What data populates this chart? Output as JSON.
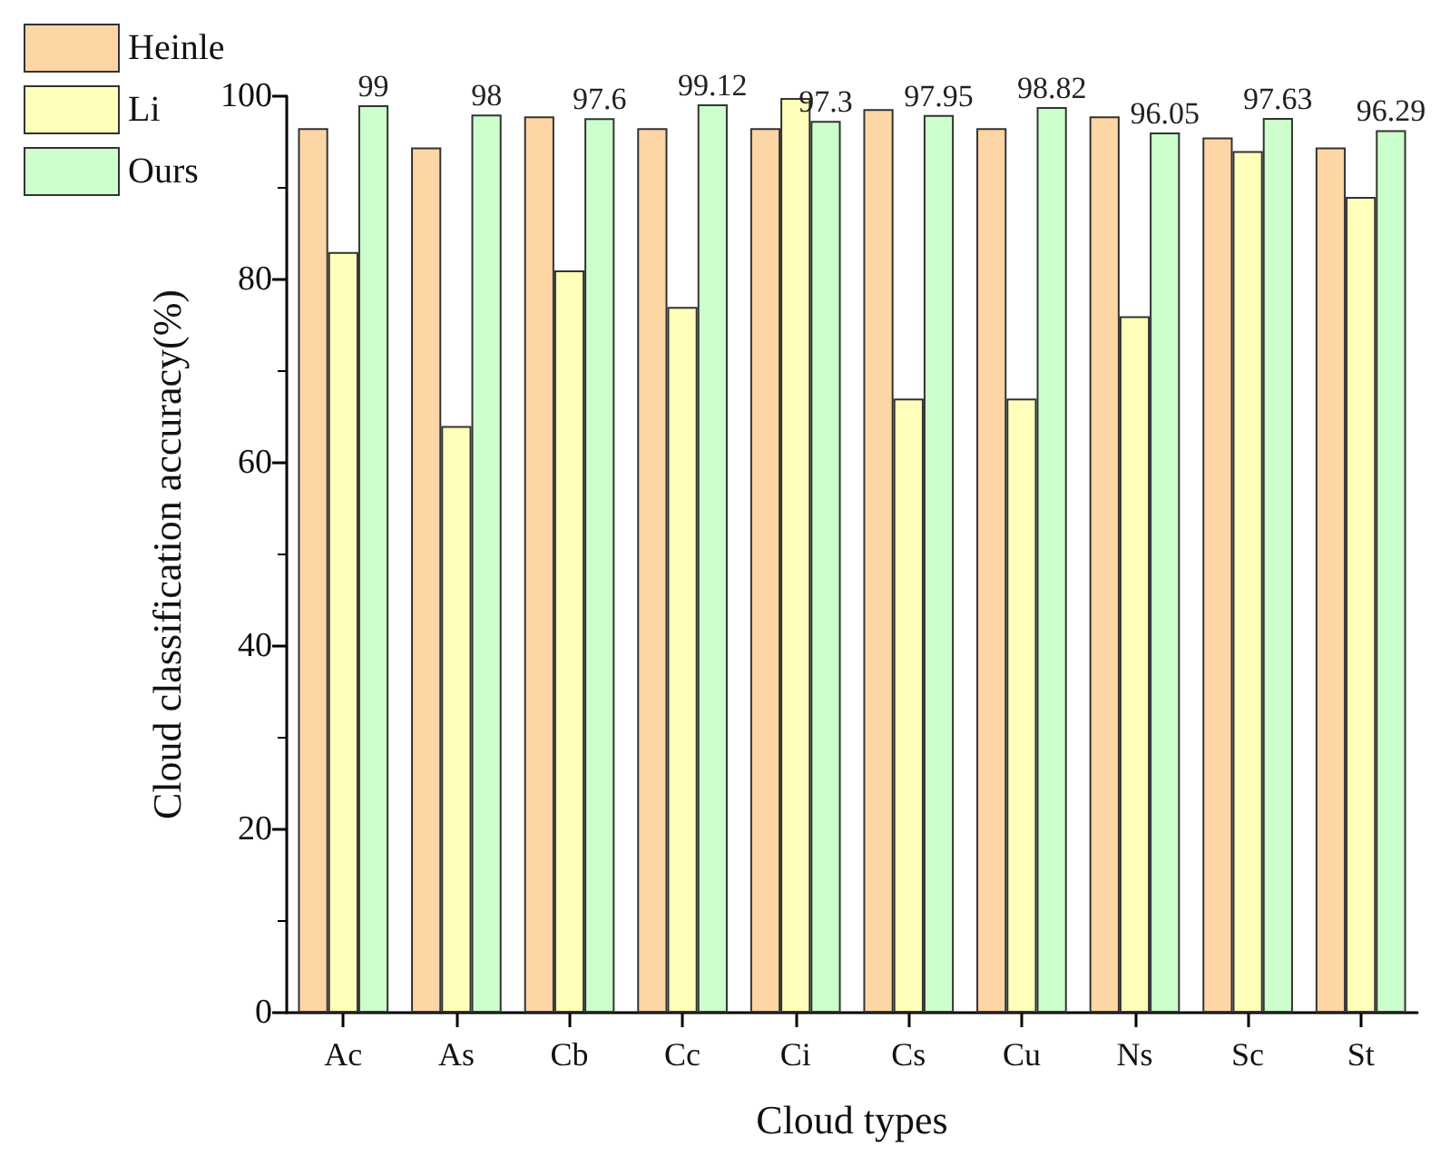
{
  "chart_data": {
    "type": "bar",
    "xlabel": "Cloud types",
    "ylabel": "Cloud classification accuracy(%)",
    "categories": [
      "Ac",
      "As",
      "Cb",
      "Cc",
      "Ci",
      "Cs",
      "Cu",
      "Ns",
      "Sc",
      "St"
    ],
    "series": [
      {
        "name": "Heinle",
        "color": "#fed5a5",
        "values": [
          96.5,
          94.4,
          97.8,
          96.5,
          96.5,
          98.6,
          96.5,
          97.8,
          95.5,
          94.4
        ]
      },
      {
        "name": "Li",
        "color": "#ffffbb",
        "values": [
          83,
          64,
          81,
          77,
          99.8,
          67,
          67,
          76,
          94,
          89
        ]
      },
      {
        "name": "Ours",
        "color": "#ccffcc",
        "values": [
          99,
          98,
          97.6,
          99.12,
          97.3,
          97.95,
          98.82,
          96.05,
          97.63,
          96.29
        ],
        "value_labels": [
          "99",
          "98",
          "97.6",
          "99.12",
          "97.3",
          "97.95",
          "98.82",
          "96.05",
          "97.63",
          "96.29"
        ]
      }
    ],
    "ylim": [
      0,
      100
    ],
    "yticks": [
      0,
      20,
      40,
      60,
      80,
      100
    ],
    "grid": false,
    "legend": "top left"
  }
}
